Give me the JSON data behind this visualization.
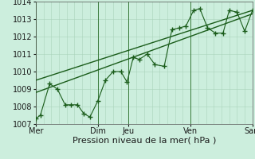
{
  "background_color": "#cceedd",
  "plot_bg_color": "#cceedd",
  "grid_color_minor": "#aad4bb",
  "grid_color_major": "#3a7a3a",
  "line_color": "#1a5c1a",
  "xlabel": "Pression niveau de la mer( hPa )",
  "ylim": [
    1007,
    1014
  ],
  "yticks": [
    1007,
    1008,
    1009,
    1010,
    1011,
    1012,
    1013,
    1014
  ],
  "xtick_labels": [
    "Mer",
    "Dim",
    "Jeu",
    "Ven",
    "Sam"
  ],
  "xtick_positions": [
    0,
    4,
    6,
    10,
    14
  ],
  "series1_x": [
    0,
    0.3,
    0.9,
    1.4,
    1.9,
    2.3,
    2.7,
    3.1,
    3.5,
    4.0,
    4.5,
    5.0,
    5.5,
    5.9,
    6.3,
    6.7,
    7.2,
    7.7,
    8.3,
    8.8,
    9.3,
    9.7,
    10.2,
    10.6,
    11.1,
    11.6,
    12.1,
    12.5,
    13.0,
    13.5,
    14.0
  ],
  "series1_y": [
    1007.3,
    1007.5,
    1009.3,
    1009.0,
    1008.1,
    1008.1,
    1008.1,
    1007.6,
    1007.4,
    1008.3,
    1009.5,
    1010.0,
    1010.0,
    1009.4,
    1010.8,
    1010.7,
    1011.0,
    1010.4,
    1010.3,
    1012.4,
    1012.5,
    1012.6,
    1013.5,
    1013.6,
    1012.5,
    1012.2,
    1012.2,
    1013.5,
    1013.4,
    1012.3,
    1013.5
  ],
  "trend1_x": [
    0,
    14
  ],
  "trend1_y": [
    1008.8,
    1013.3
  ],
  "trend2_x": [
    0,
    14
  ],
  "trend2_y": [
    1009.5,
    1013.5
  ],
  "xlabel_fontsize": 8,
  "tick_fontsize": 7
}
